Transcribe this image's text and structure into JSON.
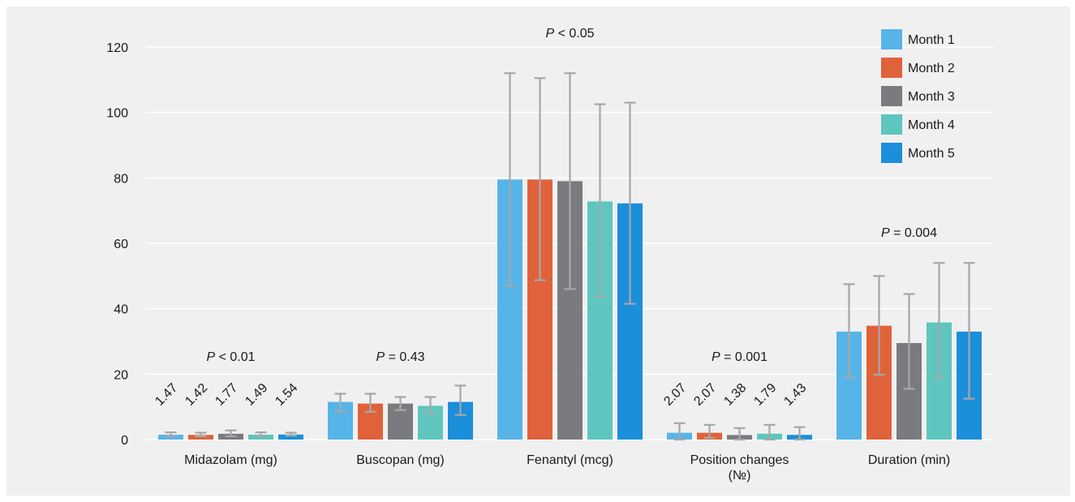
{
  "chart_data": {
    "type": "bar",
    "categories": [
      "Midazolam (mg)",
      "Buscopan (mg)",
      "Fenantyl (mcg)",
      "Position changes (№)",
      "Duration (min)"
    ],
    "category_lines": [
      [
        "Midazolam (mg)"
      ],
      [
        "Buscopan (mg)"
      ],
      [
        "Fenantyl (mcg)"
      ],
      [
        "Position changes",
        "(№)"
      ],
      [
        "Duration (min)"
      ]
    ],
    "series": [
      {
        "name": "Month 1",
        "color": "#57b4e8",
        "values": [
          1.47,
          11.5,
          79.5,
          2.07,
          33.0
        ],
        "err_low": [
          1.1,
          8.5,
          47.0,
          0.0,
          19.0
        ],
        "err_high": [
          2.2,
          14.0,
          112.0,
          5.0,
          47.5
        ]
      },
      {
        "name": "Month 2",
        "color": "#e0623a",
        "values": [
          1.42,
          11.0,
          79.5,
          2.07,
          34.8
        ],
        "err_low": [
          1.0,
          8.5,
          48.7,
          0.5,
          19.8
        ],
        "err_high": [
          2.1,
          14.0,
          110.5,
          4.5,
          50.0
        ]
      },
      {
        "name": "Month 3",
        "color": "#7a7b7e",
        "values": [
          1.77,
          11.0,
          79.0,
          1.38,
          29.5
        ],
        "err_low": [
          1.0,
          9.0,
          46.0,
          0.0,
          15.5
        ],
        "err_high": [
          2.8,
          13.0,
          112.0,
          3.5,
          44.5
        ]
      },
      {
        "name": "Month 4",
        "color": "#5ec6be",
        "values": [
          1.49,
          10.3,
          72.8,
          1.79,
          35.8
        ],
        "err_low": [
          1.0,
          8.0,
          43.7,
          0.0,
          18.8
        ],
        "err_high": [
          2.2,
          13.0,
          102.5,
          4.5,
          54.0
        ]
      },
      {
        "name": "Month 5",
        "color": "#1b8fd9",
        "values": [
          1.54,
          11.5,
          72.2,
          1.43,
          33.0
        ],
        "err_low": [
          1.2,
          7.5,
          41.5,
          0.0,
          12.5
        ],
        "err_high": [
          2.1,
          16.5,
          103.0,
          3.8,
          54.0
        ]
      }
    ],
    "data_labels": [
      [
        "1.47",
        "1.42",
        "1.77",
        "1.49",
        "1.54"
      ],
      [],
      [],
      [
        "2.07",
        "2.07",
        "1.38",
        "1.79",
        "1.43"
      ],
      []
    ],
    "p_values": [
      {
        "prefix": "P",
        "text": " < 0.01",
        "y": 24
      },
      {
        "prefix": "P",
        "text": " = 0.43",
        "y": 24
      },
      {
        "prefix": "P",
        "text": " < 0.05",
        "y": 123
      },
      {
        "prefix": "P",
        "text": " = 0.001",
        "y": 24
      },
      {
        "prefix": "P",
        "text": " = 0.004",
        "y": 62
      }
    ],
    "ylim": [
      0,
      120
    ],
    "yticks": [
      0,
      20,
      40,
      60,
      80,
      100,
      120
    ],
    "grid": true,
    "error_bar_color": "#a5a7aa",
    "grid_color": "#ffffff",
    "legend_position": "top-right",
    "title": "",
    "xlabel": "",
    "ylabel": ""
  }
}
